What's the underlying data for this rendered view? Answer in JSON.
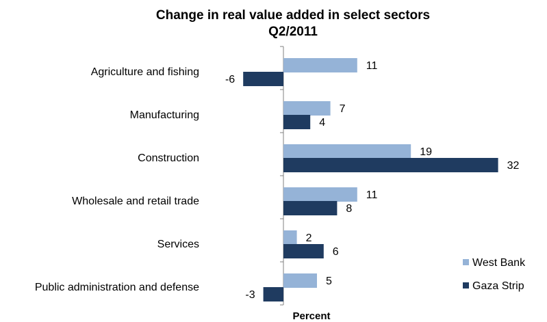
{
  "chart_data": {
    "type": "bar",
    "orientation": "horizontal",
    "title": "Change in real value added in select sectors",
    "subtitle": "Q2/2011",
    "xlabel": "Percent",
    "categories": [
      "Agriculture and fishing",
      "Manufacturing",
      "Construction",
      "Wholesale and retail trade",
      "Services",
      "Public administration and defense"
    ],
    "series": [
      {
        "name": "West Bank",
        "color": "#95b3d7",
        "values": [
          11,
          7,
          19,
          11,
          2,
          5
        ]
      },
      {
        "name": "Gaza Strip",
        "color": "#1f3b60",
        "values": [
          -6,
          4,
          32,
          8,
          6,
          -3
        ]
      }
    ],
    "xlim": [
      -10,
      35
    ],
    "grid": false,
    "legend": "bottom-right"
  }
}
